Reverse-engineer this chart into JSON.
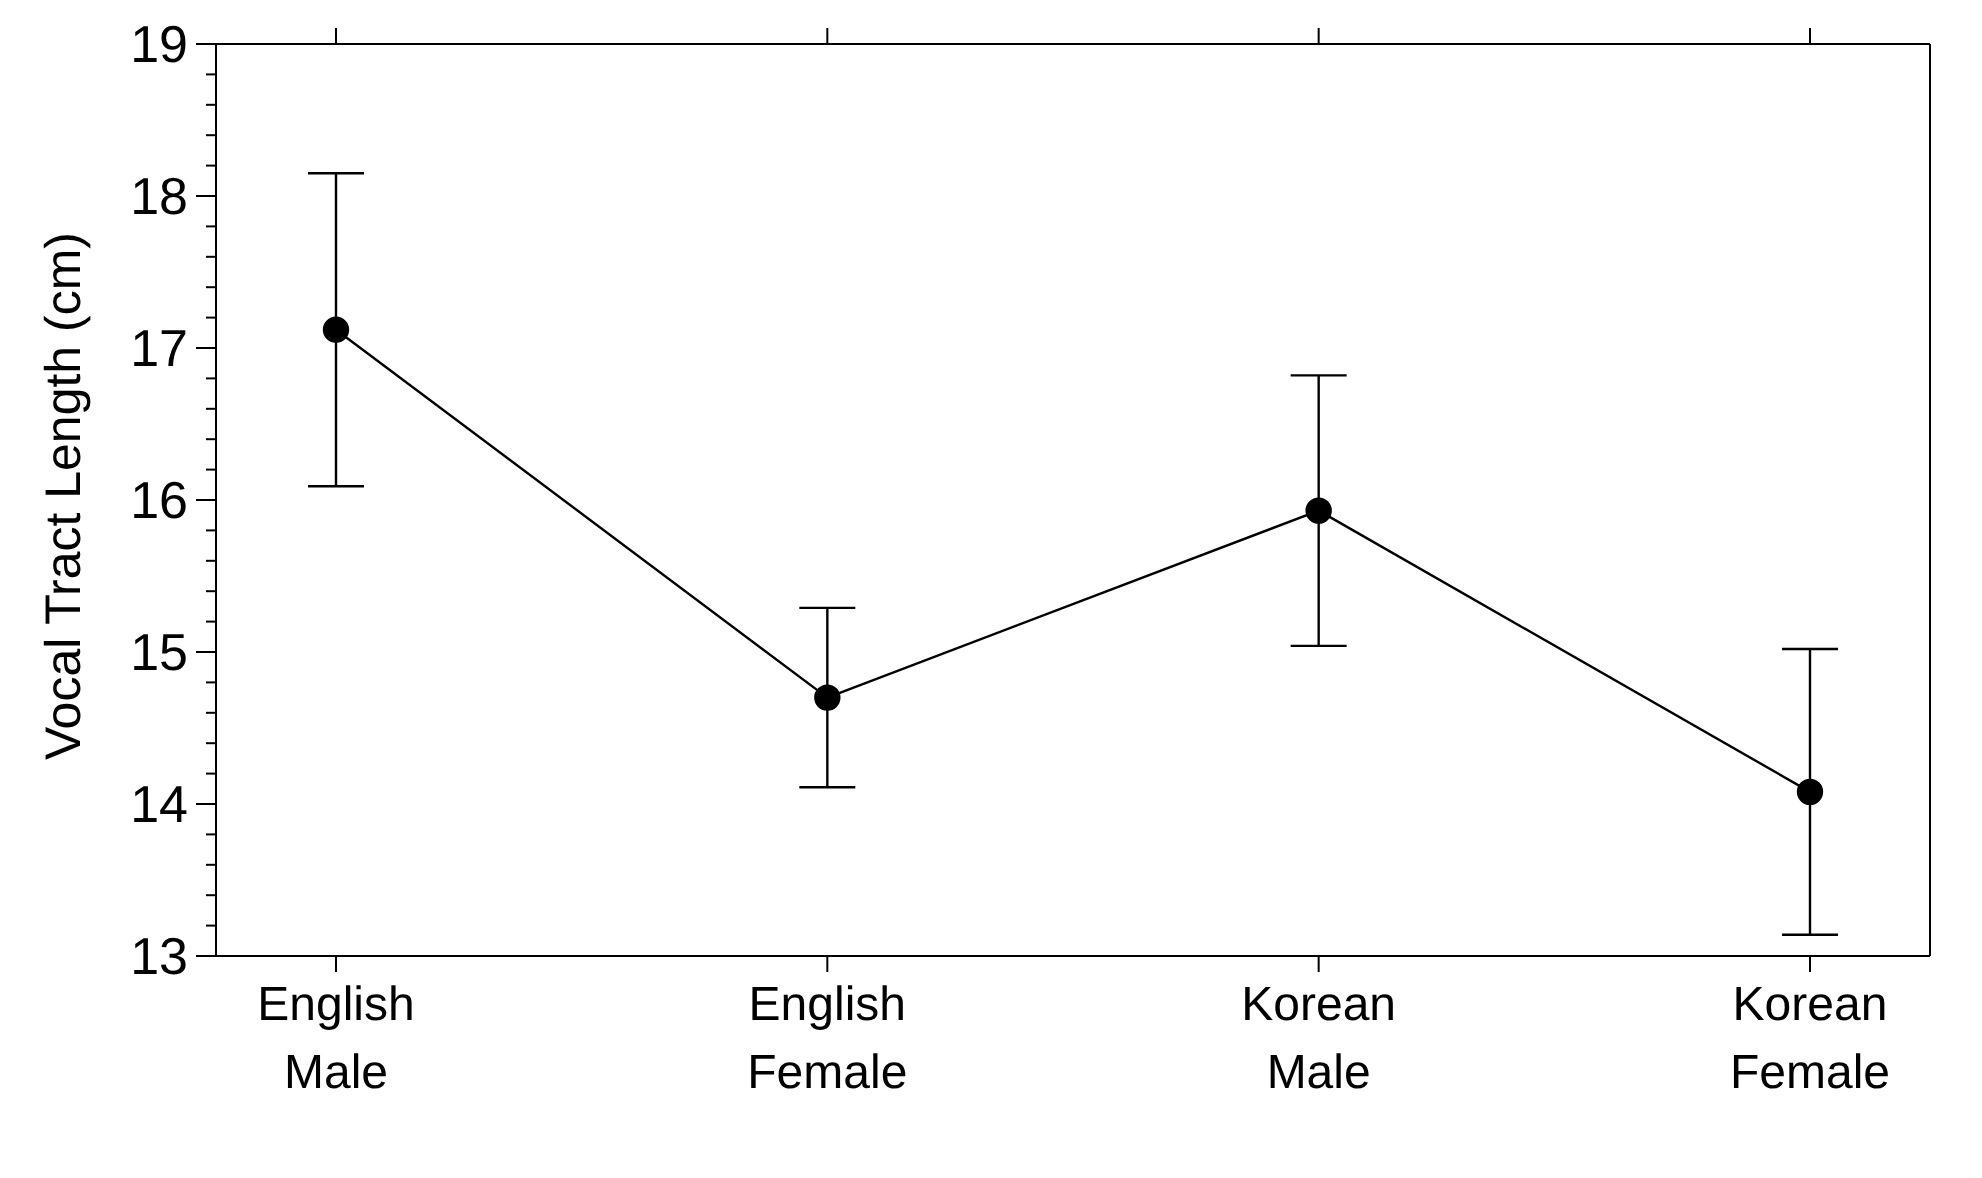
{
  "chart_data": {
    "type": "line",
    "ylabel": "Vocal Tract Length (cm)",
    "categories": [
      "English Male",
      "English Female",
      "Korean Male",
      "Korean Female"
    ],
    "series": [
      {
        "color": "#000000",
        "values": [
          17.12,
          14.7,
          15.93,
          14.08
        ],
        "errors": [
          1.03,
          0.59,
          0.89,
          0.94
        ]
      }
    ],
    "ylim": [
      13,
      19
    ],
    "yticks": [
      13,
      {
        "value": 13.2,
        "label": null
      },
      {
        "value": 13.4,
        "label": null
      },
      {
        "value": 13.6,
        "label": null
      },
      {
        "value": 13.8,
        "label": null
      },
      14,
      {
        "value": 14.2,
        "label": null
      },
      {
        "value": 14.4,
        "label": null
      },
      {
        "value": 14.6,
        "label": null
      },
      {
        "value": 14.8,
        "label": null
      },
      15,
      {
        "value": 15.2,
        "label": null
      },
      {
        "value": 15.4,
        "label": null
      },
      {
        "value": 15.6,
        "label": null
      },
      {
        "value": 15.8,
        "label": null
      },
      16,
      {
        "value": 16.2,
        "label": null
      },
      {
        "value": 16.4,
        "label": null
      },
      {
        "value": 16.6,
        "label": null
      },
      {
        "value": 16.8,
        "label": null
      },
      17,
      {
        "value": 17.2,
        "label": null
      },
      {
        "value": 17.4,
        "label": null
      },
      {
        "value": 17.6,
        "label": null
      },
      {
        "value": 17.8,
        "label": null
      },
      18,
      {
        "value": 18.2,
        "label": null
      },
      {
        "value": 18.4,
        "label": null
      },
      {
        "value": 18.6,
        "label": null
      },
      {
        "value": 18.8,
        "label": null
      },
      19
    ],
    "grid": false,
    "marker": "circle",
    "line_style": "solid"
  }
}
